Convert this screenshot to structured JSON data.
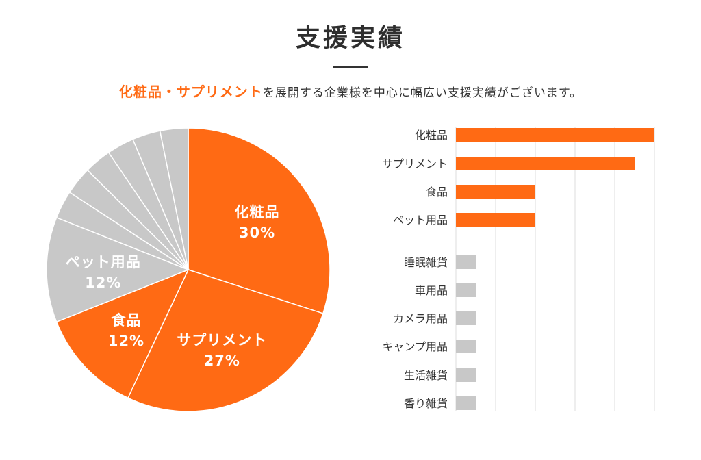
{
  "title": "支援実績",
  "subtitle": {
    "highlight": "化粧品・サプリメント",
    "rest": "を展開する企業様を中心に幅広い支援実績がございます。"
  },
  "colors": {
    "accent": "#ff6a14",
    "gray": "#c8c8c8",
    "grid": "#dddddd"
  },
  "chart_data": [
    {
      "type": "pie",
      "slices": [
        {
          "label": "化粧品",
          "value": 30,
          "value_label": "30%",
          "color": "#ff6a14",
          "labeled": true
        },
        {
          "label": "サプリメント",
          "value": 27,
          "value_label": "27%",
          "color": "#ff6a14",
          "labeled": true
        },
        {
          "label": "食品",
          "value": 12,
          "value_label": "12%",
          "color": "#ff6a14",
          "labeled": true
        },
        {
          "label": "ペット用品",
          "value": 12,
          "value_label": "12%",
          "color": "#c8c8c8",
          "labeled": true
        },
        {
          "label": "",
          "value": 3.2,
          "value_label": "",
          "color": "#c8c8c8",
          "labeled": false
        },
        {
          "label": "",
          "value": 3.2,
          "value_label": "",
          "color": "#c8c8c8",
          "labeled": false
        },
        {
          "label": "",
          "value": 3.1,
          "value_label": "",
          "color": "#c8c8c8",
          "labeled": false
        },
        {
          "label": "",
          "value": 3.1,
          "value_label": "",
          "color": "#c8c8c8",
          "labeled": false
        },
        {
          "label": "",
          "value": 3.2,
          "value_label": "",
          "color": "#c8c8c8",
          "labeled": false
        },
        {
          "label": "",
          "value": 3.2,
          "value_label": "",
          "color": "#c8c8c8",
          "labeled": false
        }
      ]
    },
    {
      "type": "bar",
      "orientation": "horizontal",
      "categories": [
        "化粧品",
        "サプリメント",
        "食品",
        "ペット用品",
        "睡眠雑貨",
        "車用品",
        "カメラ用品",
        "キャンプ用品",
        "生活雑貨",
        "香り雑貨"
      ],
      "values": [
        30,
        27,
        12,
        12,
        3,
        3,
        3,
        3,
        3,
        3
      ],
      "colors": [
        "#ff6a14",
        "#ff6a14",
        "#ff6a14",
        "#ff6a14",
        "#c8c8c8",
        "#c8c8c8",
        "#c8c8c8",
        "#c8c8c8",
        "#c8c8c8",
        "#c8c8c8"
      ],
      "xlim": [
        0,
        30
      ],
      "grid": true
    }
  ]
}
